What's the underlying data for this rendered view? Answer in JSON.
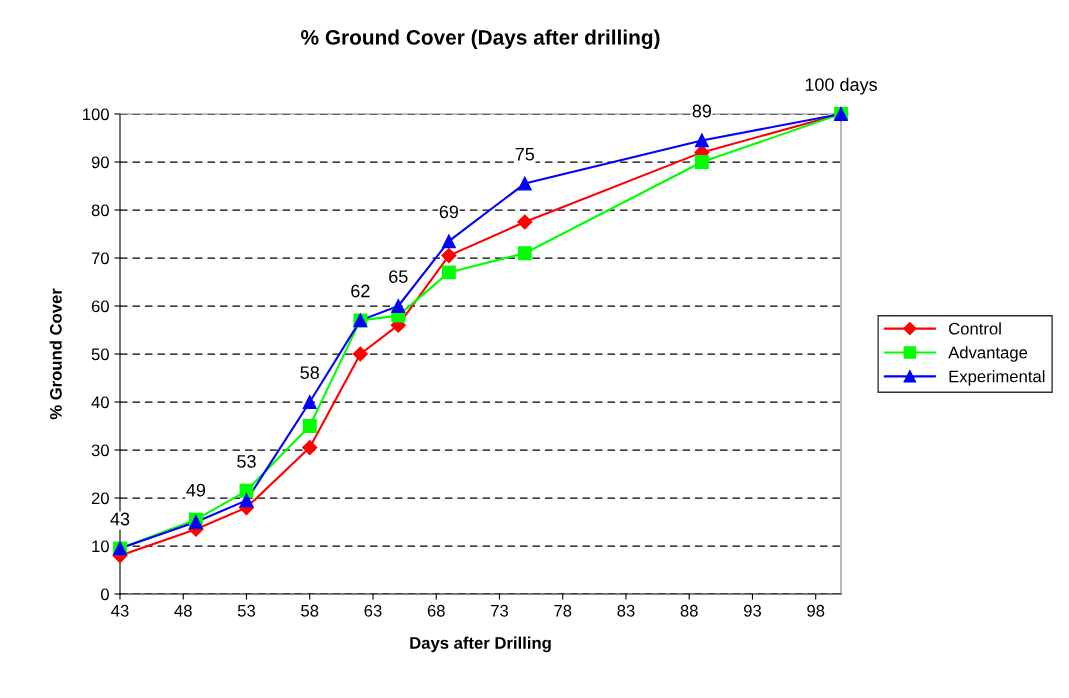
{
  "chart_data": {
    "type": "line",
    "title": "% Ground Cover (Days after drilling)",
    "xlabel": "Days after Drilling",
    "ylabel": "% Ground Cover",
    "x": [
      43,
      49,
      53,
      58,
      62,
      65,
      69,
      75,
      89,
      100
    ],
    "series": [
      {
        "name": "Control",
        "color": "#ff0000",
        "marker": "diamond",
        "values": [
          8,
          13.5,
          18,
          30.5,
          50,
          56,
          70.5,
          77.5,
          92,
          100
        ]
      },
      {
        "name": "Advantage",
        "color": "#00ff00",
        "marker": "square",
        "values": [
          9.5,
          15.5,
          21.5,
          35,
          57,
          58,
          67,
          71,
          90,
          100
        ]
      },
      {
        "name": "Experimental",
        "color": "#0000ff",
        "marker": "triangle",
        "values": [
          9.5,
          15,
          19.5,
          40,
          57,
          60,
          73.5,
          85.5,
          94.5,
          100
        ]
      }
    ],
    "xlim": [
      43,
      100
    ],
    "xticks": [
      43,
      48,
      53,
      58,
      63,
      68,
      73,
      78,
      83,
      88,
      93,
      98
    ],
    "ylim": [
      0,
      100
    ],
    "yticks": [
      0,
      10,
      20,
      30,
      40,
      50,
      60,
      70,
      80,
      90,
      100
    ],
    "grid": "y",
    "legend": "right",
    "line_style": "solid",
    "annotations": [
      {
        "text": "43",
        "x": 43,
        "y": 9.5
      },
      {
        "text": "49",
        "x": 49,
        "y": 15.5
      },
      {
        "text": "53",
        "x": 53,
        "y": 21.5
      },
      {
        "text": "58",
        "x": 58,
        "y": 40
      },
      {
        "text": "62",
        "x": 62,
        "y": 57
      },
      {
        "text": "65",
        "x": 65,
        "y": 60
      },
      {
        "text": "69",
        "x": 69,
        "y": 73.5
      },
      {
        "text": "75",
        "x": 75,
        "y": 85.5
      },
      {
        "text": "89",
        "x": 89,
        "y": 94.5
      },
      {
        "text": "100 days",
        "x": 100,
        "y": 100
      }
    ]
  }
}
